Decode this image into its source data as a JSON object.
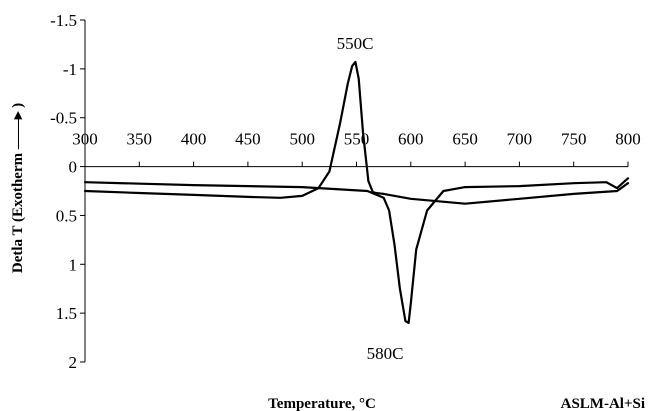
{
  "chart_data": {
    "type": "line",
    "title": "",
    "xlabel": "Temperature, °C",
    "ylabel": "Detla T (Exotherm ——▸ )",
    "annotations": {
      "peak_exo": "550C",
      "peak_endo": "580C",
      "sample": "ASLM-Al+Si"
    },
    "xlim": [
      300,
      800
    ],
    "ylim": [
      -1.5,
      2
    ],
    "y_inverted": true,
    "x_ticks": [
      "300",
      "350",
      "400",
      "450",
      "500",
      "550",
      "600",
      "650",
      "700",
      "750",
      "800"
    ],
    "y_ticks": [
      "-1.5",
      "-1",
      "-0.5",
      "0",
      "0.5",
      "1",
      "1.5",
      "2"
    ],
    "x_tick_values": [
      300,
      350,
      400,
      450,
      500,
      550,
      600,
      650,
      700,
      750,
      800
    ],
    "y_tick_values": [
      -1.5,
      -1,
      -0.5,
      0,
      0.5,
      1,
      1.5,
      2
    ],
    "grid": false,
    "series": [
      {
        "x": [
          300,
          350,
          400,
          450,
          480,
          500,
          515,
          525,
          535,
          542,
          546,
          549,
          552,
          556,
          561,
          565,
          568,
          575,
          600,
          650,
          700,
          750,
          790,
          800
        ],
        "y": [
          0.25,
          0.27,
          0.29,
          0.31,
          0.32,
          0.3,
          0.22,
          0.05,
          -0.45,
          -0.85,
          -1.03,
          -1.07,
          -0.9,
          -0.35,
          0.15,
          0.26,
          0.27,
          0.28,
          0.33,
          0.38,
          0.33,
          0.28,
          0.25,
          0.17
        ]
      },
      {
        "x": [
          300,
          400,
          500,
          560,
          575,
          580,
          585,
          590,
          595,
          598,
          600,
          605,
          615,
          630,
          650,
          700,
          750,
          780,
          790,
          797,
          800
        ],
        "y": [
          0.16,
          0.19,
          0.21,
          0.25,
          0.32,
          0.45,
          0.8,
          1.25,
          1.58,
          1.6,
          1.4,
          0.85,
          0.45,
          0.25,
          0.21,
          0.2,
          0.17,
          0.16,
          0.22,
          0.15,
          0.12
        ]
      }
    ]
  }
}
